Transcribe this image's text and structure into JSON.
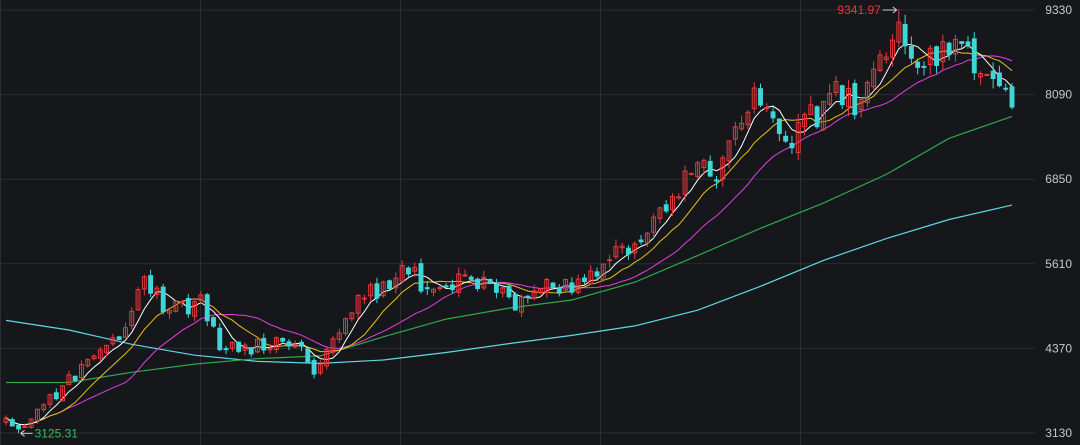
{
  "chart_data": {
    "type": "candlestick",
    "y_ticks": [
      3130,
      4370,
      5610,
      6850,
      8090,
      9330
    ],
    "ylim": [
      3130,
      9330
    ],
    "grid": true,
    "annotations": {
      "high": {
        "label": "9341.97",
        "value": 9341.97,
        "index": 142
      },
      "low": {
        "label": "3125.31",
        "value": 3125.31,
        "index": 2
      }
    },
    "colors": {
      "background": "#16171b",
      "grid": "#2b2d33",
      "up": "#e8383d",
      "down": "#3ed6d6",
      "ma5": "#ffffff",
      "ma10": "#e6c21a",
      "ma20": "#e040e0",
      "ma60": "#2fa84a",
      "ma120": "#5fd7e6"
    },
    "close_path": [
      [
        0,
        3280
      ],
      [
        2,
        3126
      ],
      [
        6,
        3520
      ],
      [
        10,
        3900
      ],
      [
        14,
        4290
      ],
      [
        18,
        4570
      ],
      [
        22,
        5380
      ],
      [
        25,
        5010
      ],
      [
        28,
        4950
      ],
      [
        31,
        5100
      ],
      [
        34,
        4440
      ],
      [
        38,
        4380
      ],
      [
        42,
        4450
      ],
      [
        46,
        4500
      ],
      [
        48,
        4130
      ],
      [
        50,
        4050
      ],
      [
        53,
        4700
      ],
      [
        56,
        5100
      ],
      [
        60,
        5280
      ],
      [
        64,
        5520
      ],
      [
        68,
        5150
      ],
      [
        71,
        5330
      ],
      [
        75,
        5380
      ],
      [
        78,
        5200
      ],
      [
        81,
        5020
      ],
      [
        85,
        5340
      ],
      [
        88,
        5190
      ],
      [
        92,
        5450
      ],
      [
        95,
        5600
      ],
      [
        99,
        5840
      ],
      [
        102,
        6150
      ],
      [
        104,
        6380
      ],
      [
        107,
        6730
      ],
      [
        110,
        7120
      ],
      [
        113,
        6940
      ],
      [
        115,
        7480
      ],
      [
        117,
        7600
      ],
      [
        119,
        8120
      ],
      [
        122,
        7700
      ],
      [
        125,
        7480
      ],
      [
        127,
        7830
      ],
      [
        129,
        7720
      ],
      [
        132,
        8110
      ],
      [
        135,
        7940
      ],
      [
        138,
        8280
      ],
      [
        141,
        9000
      ],
      [
        142,
        9200
      ],
      [
        144,
        8600
      ],
      [
        146,
        8440
      ],
      [
        149,
        8800
      ],
      [
        151,
        8920
      ],
      [
        153,
        8840
      ],
      [
        155,
        8380
      ],
      [
        157,
        8200
      ],
      [
        159,
        8020
      ],
      [
        160,
        7780
      ]
    ],
    "ma60": [
      [
        0,
        3870
      ],
      [
        10,
        3870
      ],
      [
        20,
        4020
      ],
      [
        30,
        4140
      ],
      [
        40,
        4220
      ],
      [
        50,
        4260
      ],
      [
        60,
        4540
      ],
      [
        70,
        4800
      ],
      [
        80,
        4960
      ],
      [
        90,
        5080
      ],
      [
        100,
        5340
      ],
      [
        110,
        5730
      ],
      [
        120,
        6130
      ],
      [
        130,
        6500
      ],
      [
        140,
        6920
      ],
      [
        150,
        7450
      ],
      [
        160,
        7770
      ]
    ],
    "ma120": [
      [
        0,
        4780
      ],
      [
        10,
        4640
      ],
      [
        20,
        4430
      ],
      [
        30,
        4270
      ],
      [
        40,
        4180
      ],
      [
        50,
        4150
      ],
      [
        60,
        4200
      ],
      [
        70,
        4310
      ],
      [
        80,
        4440
      ],
      [
        90,
        4560
      ],
      [
        100,
        4700
      ],
      [
        110,
        4930
      ],
      [
        120,
        5280
      ],
      [
        130,
        5660
      ],
      [
        140,
        5980
      ],
      [
        150,
        6260
      ],
      [
        160,
        6470
      ]
    ]
  }
}
